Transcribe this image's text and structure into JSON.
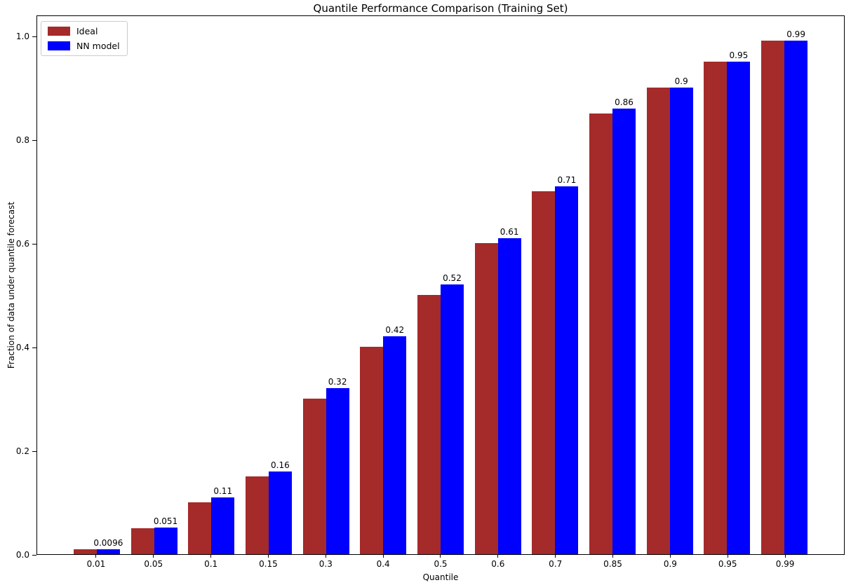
{
  "title": "Quantile Performance Comparison (Training Set)",
  "x_axis_label": "Quantile",
  "y_axis_label": "Fraction of data under quantile forecast",
  "legend": {
    "position": "upper left",
    "items": [
      {
        "label": "Ideal",
        "color": "#a52a2a"
      },
      {
        "label": "NN model",
        "color": "#0000ff"
      }
    ]
  },
  "colors": {
    "ideal_bar": "#a52a2a",
    "nn_bar": "#0000ff",
    "axes": "#000000",
    "background": "#ffffff"
  },
  "chart_data": {
    "type": "bar",
    "title": "Quantile Performance Comparison (Training Set)",
    "xlabel": "Quantile",
    "ylabel": "Fraction of data under quantile forecast",
    "categories": [
      "0.01",
      "0.05",
      "0.1",
      "0.15",
      "0.3",
      "0.4",
      "0.5",
      "0.6",
      "0.7",
      "0.85",
      "0.9",
      "0.95",
      "0.99"
    ],
    "series": [
      {
        "name": "Ideal",
        "color": "#a52a2a",
        "values": [
          0.01,
          0.05,
          0.1,
          0.15,
          0.3,
          0.4,
          0.5,
          0.6,
          0.7,
          0.85,
          0.9,
          0.95,
          0.99
        ]
      },
      {
        "name": "NN model",
        "color": "#0000ff",
        "values": [
          0.0096,
          0.051,
          0.11,
          0.16,
          0.32,
          0.42,
          0.52,
          0.61,
          0.71,
          0.86,
          0.9,
          0.95,
          0.99
        ],
        "value_labels": [
          "0.0096",
          "0.051",
          "0.11",
          "0.16",
          "0.32",
          "0.42",
          "0.52",
          "0.61",
          "0.71",
          "0.86",
          "0.9",
          "0.95",
          "0.99"
        ]
      }
    ],
    "yticks": [
      "0.0",
      "0.2",
      "0.4",
      "0.6",
      "0.8",
      "1.0"
    ],
    "ylim": [
      0,
      1.04
    ],
    "grid": false,
    "legend_position": "upper left",
    "bar_value_labels_on": "NN model"
  }
}
